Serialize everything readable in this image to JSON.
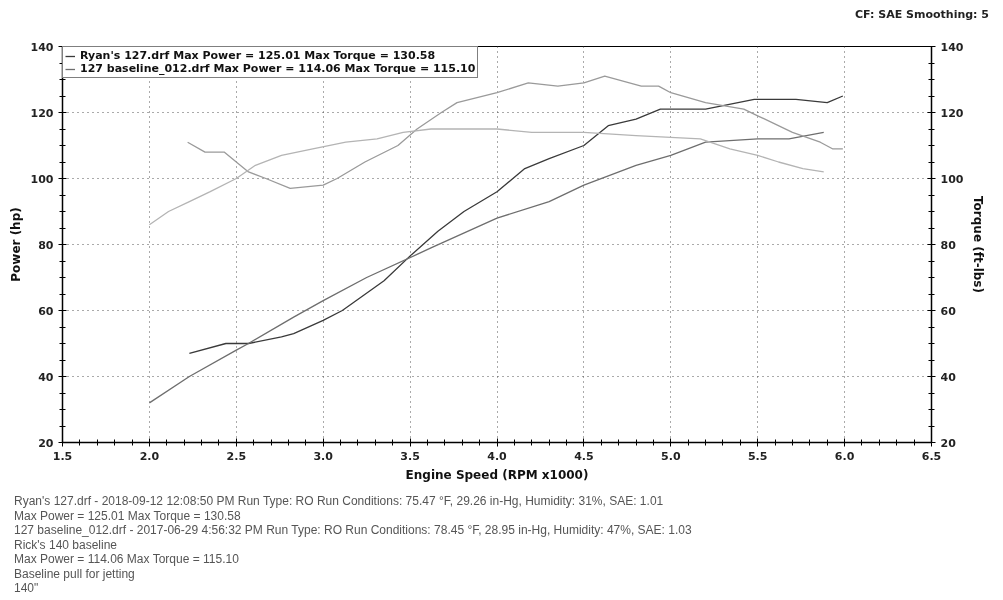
{
  "chart_data": {
    "type": "line",
    "annotations": [
      "CF: SAE Smoothing: 5",
      "Ryan's 127.drf - 2018-09-12 12:08:50 PM Run Type: RO Run Conditions: 75.47 °F, 29.26 in-Hg, Humidity: 31%, SAE: 1.01",
      "Max Power = 125.01 Max Torque = 130.58",
      "127 baseline_012.drf - 2017-06-29 4:56:32 PM Run Type: RO Run Conditions: 78.45 °F, 28.95 in-Hg, Humidity: 47%, SAE: 1.03",
      "Rick's 140 baseline",
      "Max Power = 114.06 Max Torque = 115.10",
      "Baseline pull for jetting",
      "140\""
    ],
    "xlabel": "Engine Speed (RPM x1000)",
    "ylabel": "Power (hp)",
    "y2label": "Torque (ft-lbs)",
    "xlim": [
      1.5,
      6.5
    ],
    "xticks": [
      1.5,
      {
        "value": 2,
        "label": "2.0"
      },
      2.5,
      {
        "value": 3,
        "label": "3.0"
      },
      3.5,
      {
        "value": 4,
        "label": "4.0"
      },
      4.5,
      {
        "value": 5,
        "label": "5.0"
      },
      5.5,
      {
        "value": 6,
        "label": "6.0"
      },
      6.5
    ],
    "ylim": [
      20,
      140
    ],
    "yticks": [
      20,
      40,
      60,
      80,
      100,
      120,
      140
    ],
    "y2lim": [
      20,
      140
    ],
    "y2ticks": [
      20,
      40,
      60,
      80,
      100,
      120,
      140
    ],
    "grid": true,
    "legend": "top left",
    "line_style": "solid",
    "series": [
      {
        "name": "Ryan's 127.drf Max Power = 125.01 Max Torque = 130.58",
        "color": "#3a3a3a",
        "x": [
          2.23,
          2.44,
          2.57,
          2.76,
          2.83,
          3.0,
          3.11,
          3.35,
          3.51,
          3.66,
          3.81,
          4.0,
          4.16,
          4.3,
          4.5,
          4.64,
          4.8,
          4.94,
          5.0,
          5.2,
          5.48,
          5.72,
          5.9,
          5.99
        ],
        "values": [
          47,
          50,
          50,
          52,
          53,
          57,
          60,
          69,
          77,
          84,
          90,
          96,
          103,
          106,
          110,
          116,
          118,
          121,
          121,
          121,
          124,
          124,
          123,
          125
        ]
      },
      {
        "name": "127 baseline_012.drf Max Power = 114.06 Max Torque = 115.10",
        "color": "#6e6e6e",
        "x": [
          2.0,
          2.23,
          2.5,
          2.57,
          2.83,
          3.0,
          3.25,
          3.54,
          3.62,
          4.0,
          4.3,
          4.5,
          4.8,
          5.0,
          5.2,
          5.5,
          5.68,
          5.78,
          5.88
        ],
        "values": [
          32,
          40,
          48,
          50,
          58,
          63,
          70,
          77,
          79,
          88,
          93,
          98,
          104,
          107,
          111,
          112,
          112,
          113,
          114
        ]
      },
      {
        "color": "#9a9a9a",
        "x": [
          2.22,
          2.32,
          2.43,
          2.5,
          2.57,
          2.67,
          2.81,
          3.0,
          3.08,
          3.24,
          3.43,
          3.54,
          3.68,
          3.77,
          4.0,
          4.18,
          4.35,
          4.5,
          4.62,
          4.83,
          4.93,
          5.0,
          5.2,
          5.42,
          5.5,
          5.7,
          5.86,
          5.93,
          5.99
        ],
        "values": [
          111,
          108,
          108,
          105,
          102,
          100,
          97,
          98,
          100,
          105,
          110,
          115,
          120,
          123,
          126,
          129,
          128,
          129,
          131,
          128,
          128,
          126,
          123,
          121,
          119,
          114,
          111,
          109,
          109
        ]
      },
      {
        "color": "#b4b4b4",
        "x": [
          2.0,
          2.11,
          2.23,
          2.35,
          2.5,
          2.61,
          2.76,
          2.94,
          3.13,
          3.31,
          3.46,
          3.62,
          4.0,
          4.2,
          4.5,
          4.8,
          5.17,
          5.34,
          5.5,
          5.62,
          5.76,
          5.88
        ],
        "values": [
          86,
          90,
          93,
          96,
          100,
          104,
          107,
          109,
          111,
          112,
          114,
          115,
          115,
          114,
          114,
          113,
          112,
          109,
          107,
          105,
          103,
          102
        ]
      }
    ]
  }
}
